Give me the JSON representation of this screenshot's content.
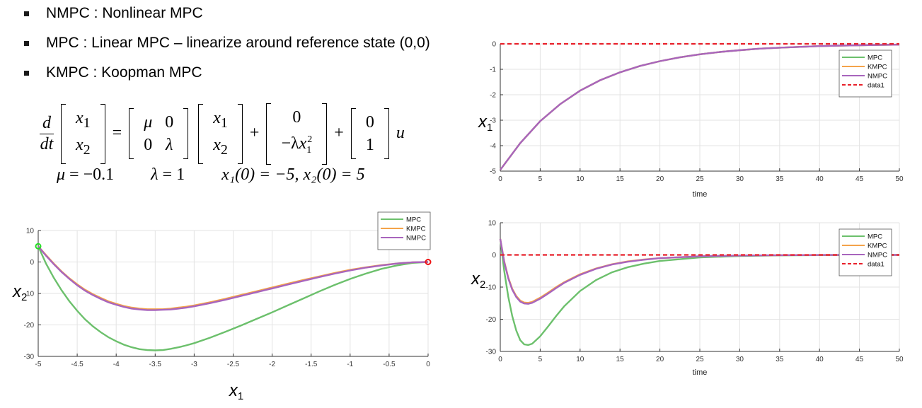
{
  "bullets": [
    "NMPC : Nonlinear MPC",
    "MPC : Linear MPC – linearize around reference state (0,0)",
    "KMPC : Koopman MPC"
  ],
  "equation": {
    "lhs_num": "d",
    "lhs_den": "dt",
    "x1": "x",
    "x1_sub": "1",
    "x2": "x",
    "x2_sub": "2",
    "A11": "μ",
    "A12": "0",
    "A21": "0",
    "A22": "λ",
    "n1": "0",
    "n2_prefix": "−λ",
    "n2_var": "x",
    "n2_sub": "1",
    "n2_sup": "2",
    "b1": "0",
    "b2": "1",
    "u": "u",
    "eq": "=",
    "plus": "+"
  },
  "params": {
    "mu_lhs": "μ",
    "mu_val": "= −0.1",
    "lam_lhs": "λ",
    "lam_val": "= 1",
    "init": "x₁(0) = −5, x₂(0) = 5"
  },
  "colors": {
    "MPC": "#6cc06c",
    "KMPC": "#f4a34a",
    "NMPC": "#a865bd",
    "data1": "#e8202a",
    "start_marker": "#22dd22",
    "end_marker": "#ee1111"
  },
  "chart_data": [
    {
      "id": "phase",
      "type": "line",
      "xlabel": "x",
      "xlabel_sub": "1",
      "ylabel": "x",
      "ylabel_sub": "2",
      "xlim": [
        -5,
        0
      ],
      "ylim": [
        -30,
        10
      ],
      "xticks": [
        -5,
        -4.5,
        -4,
        -3.5,
        -3,
        -2.5,
        -2,
        -1.5,
        -1,
        -0.5,
        0
      ],
      "yticks": [
        10,
        0,
        -10,
        -20,
        -30
      ],
      "grid": true,
      "legend": "top-right",
      "markers": {
        "start": [
          -5,
          5
        ],
        "end": [
          0,
          0
        ]
      },
      "series": [
        {
          "name": "MPC",
          "x": [
            -5,
            -4.9,
            -4.8,
            -4.7,
            -4.6,
            -4.5,
            -4.4,
            -4.3,
            -4.2,
            -4.1,
            -4.0,
            -3.9,
            -3.8,
            -3.7,
            -3.6,
            -3.5,
            -3.4,
            -3.3,
            -3.2,
            -3.1,
            -3.0,
            -2.8,
            -2.6,
            -2.4,
            -2.2,
            -2.0,
            -1.8,
            -1.6,
            -1.4,
            -1.2,
            -1.0,
            -0.8,
            -0.6,
            -0.4,
            -0.2,
            0
          ],
          "y": [
            5,
            -0.5,
            -5.0,
            -9.0,
            -12.5,
            -15.5,
            -18.2,
            -20.4,
            -22.3,
            -23.9,
            -25.2,
            -26.3,
            -27.1,
            -27.7,
            -28.0,
            -28.1,
            -28.0,
            -27.6,
            -27.1,
            -26.5,
            -25.8,
            -24.1,
            -22.2,
            -20.2,
            -18.1,
            -16.0,
            -13.8,
            -11.6,
            -9.4,
            -7.3,
            -5.4,
            -3.7,
            -2.2,
            -1.1,
            -0.3,
            0
          ]
        },
        {
          "name": "KMPC",
          "x": [
            -5,
            -4.9,
            -4.8,
            -4.7,
            -4.6,
            -4.5,
            -4.4,
            -4.3,
            -4.2,
            -4.1,
            -4.0,
            -3.9,
            -3.8,
            -3.7,
            -3.6,
            -3.5,
            -3.4,
            -3.3,
            -3.2,
            -3.1,
            -3.0,
            -2.8,
            -2.6,
            -2.4,
            -2.2,
            -2.0,
            -1.8,
            -1.6,
            -1.4,
            -1.2,
            -1.0,
            -0.8,
            -0.6,
            -0.4,
            -0.2,
            0
          ],
          "y": [
            5,
            2.2,
            -0.5,
            -3.0,
            -5.2,
            -7.1,
            -8.8,
            -10.2,
            -11.4,
            -12.5,
            -13.3,
            -14.0,
            -14.5,
            -14.8,
            -15.0,
            -15.0,
            -15.0,
            -14.8,
            -14.5,
            -14.2,
            -13.8,
            -12.8,
            -11.7,
            -10.5,
            -9.3,
            -8.1,
            -6.9,
            -5.7,
            -4.6,
            -3.5,
            -2.5,
            -1.7,
            -1.0,
            -0.5,
            -0.1,
            0
          ]
        },
        {
          "name": "NMPC",
          "x": [
            -5,
            -4.9,
            -4.8,
            -4.7,
            -4.6,
            -4.5,
            -4.4,
            -4.3,
            -4.2,
            -4.1,
            -4.0,
            -3.9,
            -3.8,
            -3.7,
            -3.6,
            -3.5,
            -3.4,
            -3.3,
            -3.2,
            -3.1,
            -3.0,
            -2.8,
            -2.6,
            -2.4,
            -2.2,
            -2.0,
            -1.8,
            -1.6,
            -1.4,
            -1.2,
            -1.0,
            -0.8,
            -0.6,
            -0.4,
            -0.2,
            0
          ],
          "y": [
            5,
            2.0,
            -0.7,
            -3.2,
            -5.4,
            -7.4,
            -9.1,
            -10.5,
            -11.7,
            -12.8,
            -13.6,
            -14.3,
            -14.8,
            -15.1,
            -15.3,
            -15.3,
            -15.2,
            -15.1,
            -14.8,
            -14.5,
            -14.1,
            -13.1,
            -12.0,
            -10.8,
            -9.6,
            -8.4,
            -7.2,
            -6.0,
            -4.8,
            -3.7,
            -2.7,
            -1.8,
            -1.1,
            -0.5,
            -0.1,
            0
          ]
        }
      ]
    },
    {
      "id": "x1_time",
      "type": "line",
      "xlabel": "time",
      "ylabel": "x",
      "ylabel_sub": "1",
      "xlim": [
        0,
        50
      ],
      "ylim": [
        -5,
        0
      ],
      "xticks": [
        0,
        5,
        10,
        15,
        20,
        25,
        30,
        35,
        40,
        45,
        50
      ],
      "yticks": [
        0,
        -1,
        -2,
        -3,
        -4,
        -5
      ],
      "grid": true,
      "legend": "top-right",
      "series": [
        {
          "name": "MPC",
          "x": [
            0,
            2.5,
            5,
            7.5,
            10,
            12.5,
            15,
            17.5,
            20,
            22.5,
            25,
            27.5,
            30,
            32.5,
            35,
            37.5,
            40,
            42.5,
            45,
            47.5,
            50
          ],
          "y": [
            -4.95,
            -3.9,
            -3.04,
            -2.37,
            -1.84,
            -1.43,
            -1.12,
            -0.87,
            -0.68,
            -0.53,
            -0.41,
            -0.32,
            -0.25,
            -0.19,
            -0.15,
            -0.12,
            -0.09,
            -0.07,
            -0.055,
            -0.043,
            -0.034
          ]
        },
        {
          "name": "KMPC",
          "x": [
            0,
            2.5,
            5,
            7.5,
            10,
            12.5,
            15,
            17.5,
            20,
            22.5,
            25,
            27.5,
            30,
            32.5,
            35,
            37.5,
            40,
            42.5,
            45,
            47.5,
            50
          ],
          "y": [
            -4.95,
            -3.9,
            -3.04,
            -2.37,
            -1.84,
            -1.43,
            -1.12,
            -0.87,
            -0.68,
            -0.53,
            -0.41,
            -0.32,
            -0.25,
            -0.19,
            -0.15,
            -0.12,
            -0.09,
            -0.07,
            -0.055,
            -0.043,
            -0.034
          ]
        },
        {
          "name": "NMPC",
          "x": [
            0,
            2.5,
            5,
            7.5,
            10,
            12.5,
            15,
            17.5,
            20,
            22.5,
            25,
            27.5,
            30,
            32.5,
            35,
            37.5,
            40,
            42.5,
            45,
            47.5,
            50
          ],
          "y": [
            -4.95,
            -3.9,
            -3.04,
            -2.37,
            -1.84,
            -1.43,
            -1.12,
            -0.87,
            -0.68,
            -0.53,
            -0.41,
            -0.32,
            -0.25,
            -0.19,
            -0.15,
            -0.12,
            -0.09,
            -0.07,
            -0.055,
            -0.043,
            -0.034
          ]
        },
        {
          "name": "data1",
          "style": "dashed",
          "x": [
            0,
            50
          ],
          "y": [
            0,
            0
          ]
        }
      ]
    },
    {
      "id": "x2_time",
      "type": "line",
      "xlabel": "time",
      "ylabel": "x",
      "ylabel_sub": "2",
      "xlim": [
        0,
        50
      ],
      "ylim": [
        -30,
        10
      ],
      "xticks": [
        0,
        5,
        10,
        15,
        20,
        25,
        30,
        35,
        40,
        45,
        50
      ],
      "yticks": [
        10,
        0,
        -10,
        -20,
        -30
      ],
      "grid": true,
      "legend": "top-right",
      "series": [
        {
          "name": "MPC",
          "x": [
            0,
            0.5,
            1,
            1.5,
            2,
            2.5,
            3,
            3.5,
            4,
            5,
            6,
            7,
            8,
            10,
            12,
            14,
            16,
            18,
            20,
            25,
            30,
            35,
            40,
            45,
            50
          ],
          "y": [
            5,
            -5,
            -13,
            -19,
            -23.5,
            -26.5,
            -27.8,
            -28.0,
            -27.6,
            -25.3,
            -22.2,
            -19.0,
            -16.0,
            -11.2,
            -7.8,
            -5.4,
            -3.8,
            -2.7,
            -1.9,
            -0.8,
            -0.35,
            -0.15,
            -0.06,
            -0.03,
            -0.01
          ]
        },
        {
          "name": "KMPC",
          "x": [
            0,
            0.5,
            1,
            1.5,
            2,
            2.5,
            3,
            3.5,
            4,
            5,
            6,
            7,
            8,
            10,
            12,
            14,
            16,
            18,
            20,
            25,
            30,
            35,
            40,
            45,
            50
          ],
          "y": [
            5,
            -2,
            -7,
            -10.5,
            -12.8,
            -14.2,
            -14.8,
            -14.9,
            -14.6,
            -13.3,
            -11.7,
            -10.0,
            -8.5,
            -6.0,
            -4.2,
            -2.9,
            -2.0,
            -1.4,
            -1.0,
            -0.45,
            -0.2,
            -0.08,
            -0.03,
            -0.01,
            0
          ]
        },
        {
          "name": "NMPC",
          "x": [
            0,
            0.5,
            1,
            1.5,
            2,
            2.5,
            3,
            3.5,
            4,
            5,
            6,
            7,
            8,
            10,
            12,
            14,
            16,
            18,
            20,
            25,
            30,
            35,
            40,
            45,
            50
          ],
          "y": [
            5,
            -2.2,
            -7.3,
            -10.8,
            -13.1,
            -14.5,
            -15.1,
            -15.2,
            -14.9,
            -13.6,
            -12.0,
            -10.3,
            -8.7,
            -6.2,
            -4.3,
            -3.0,
            -2.1,
            -1.5,
            -1.0,
            -0.45,
            -0.2,
            -0.08,
            -0.03,
            -0.01,
            0
          ]
        },
        {
          "name": "data1",
          "style": "dashed",
          "x": [
            0,
            50
          ],
          "y": [
            0,
            0
          ]
        }
      ]
    }
  ]
}
